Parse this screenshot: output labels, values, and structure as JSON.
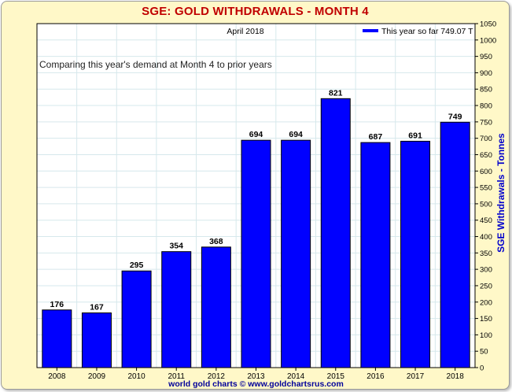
{
  "header": {
    "title": "SGE: GOLD WITHDRAWALS - MONTH 4"
  },
  "footer": {
    "credit": "world gold charts © www.goldchartsrus.com"
  },
  "colors": {
    "bar": "#0000ff",
    "title": "#c00000",
    "axis_label": "#0000cc",
    "frame_bg": "#fff8c8"
  },
  "chart_data": {
    "type": "bar",
    "top_label": "April 2018",
    "annotation": "Comparing this year's demand at Month 4 to prior years",
    "legend": {
      "label": "This year so far 749.07 T",
      "placement": "top-right"
    },
    "ylabel": "SGE Withdrawals - Tonnes",
    "ylim": [
      0,
      1050
    ],
    "ystep": 50,
    "grid": true,
    "categories": [
      "2008",
      "2009",
      "2010",
      "2011",
      "2012",
      "2013",
      "2014",
      "2015",
      "2016",
      "2017",
      "2018"
    ],
    "values": [
      176,
      167,
      295,
      354,
      368,
      694,
      694,
      821,
      687,
      691,
      749
    ]
  }
}
